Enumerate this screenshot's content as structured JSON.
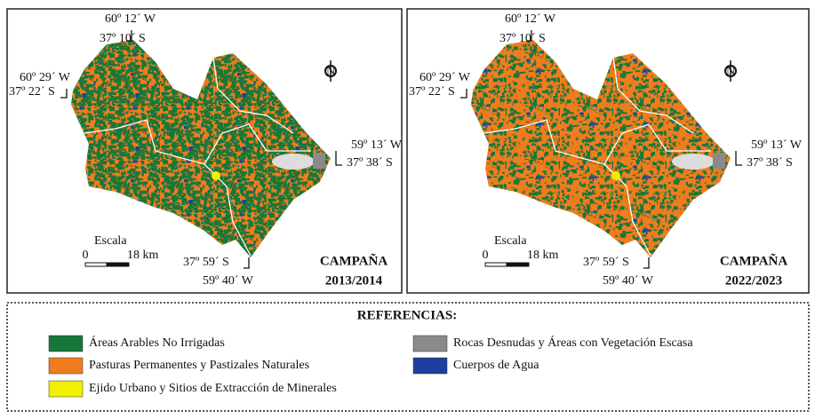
{
  "panels": [
    {
      "coordinates": [
        "60º 12´ W",
        "37º 10´ S",
        "60º 29´ W",
        "37º 22´ S",
        "59º 13´ W",
        "37º 38´ S",
        "37º 59´ S",
        "59º 40´ W"
      ],
      "north": "N",
      "scale": {
        "title": "Escala",
        "start": "0",
        "end": "18 km"
      },
      "campaign": "CAMPAÑA",
      "period": "2013/2014"
    },
    {
      "coordinates": [
        "60º 12´ W",
        "37º 10´ S",
        "60º 29´ W",
        "37º 22´ S",
        "59º 13´ W",
        "37º 38´ S",
        "37º 59´ S",
        "59º 40´ W"
      ],
      "north": "N",
      "scale": {
        "title": "Escala",
        "start": "0",
        "end": "18 km"
      },
      "campaign": "CAMPAÑA",
      "period": "2022/2023"
    }
  ],
  "legend": {
    "title": "REFERENCIAS:",
    "items": [
      {
        "label": "Áreas Arables No Irrigadas",
        "color": "#17773a"
      },
      {
        "label": "Pasturas Permanentes y Pastizales Naturales",
        "color": "#f07c1e"
      },
      {
        "label": "Ejido Urbano y Sitios de Extracción de Minerales",
        "color": "#f0f000"
      },
      {
        "label": "Rocas Desnudas y Áreas con Vegetación Escasa",
        "color": "#8a8a8a"
      },
      {
        "label": "Cuerpos de Agua",
        "color": "#1f3fa0"
      }
    ]
  }
}
